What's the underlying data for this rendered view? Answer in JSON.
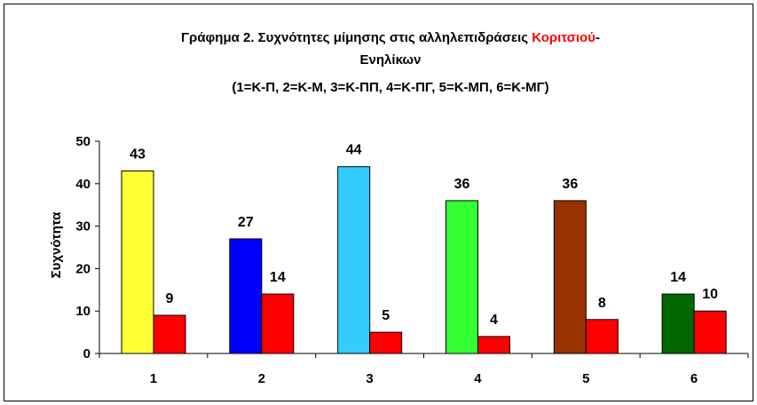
{
  "chart_data": {
    "type": "bar",
    "title_line1_part1": "Γράφημα 2. Συχνότητες μίμησης στις αλληλεπιδράσεις ",
    "title_line1_highlight": "Κοριτσιού",
    "title_line1_part2": "-",
    "title_line2": "Ενηλίκων",
    "title_line3": "(1=Κ-Π, 2=Κ-Μ, 3=Κ-ΠΠ, 4=Κ-ΠΓ, 5=Κ-ΜΠ, 6=Κ-ΜΓ)",
    "ylabel": "Συχνότητα",
    "xlabel": "",
    "ylim": [
      0,
      50
    ],
    "yticks": [
      0,
      10,
      20,
      30,
      40,
      50
    ],
    "grid": false,
    "legend": "none",
    "categories": [
      "1",
      "2",
      "3",
      "4",
      "5",
      "6"
    ],
    "series": [
      {
        "values": [
          43,
          27,
          44,
          36,
          36,
          14
        ],
        "colors": [
          "#ffff33",
          "#0000ff",
          "#33ccff",
          "#33ff33",
          "#993300",
          "#006600"
        ]
      },
      {
        "values": [
          9,
          14,
          5,
          4,
          8,
          10
        ],
        "colors": [
          "#ff0000",
          "#ff0000",
          "#ff0000",
          "#ff0000",
          "#ff0000",
          "#ff0000"
        ]
      }
    ],
    "colors": {
      "title_highlight": "#ff0000",
      "axis": "#000000",
      "bar_outline": "#000000",
      "frame": "#000000"
    }
  }
}
